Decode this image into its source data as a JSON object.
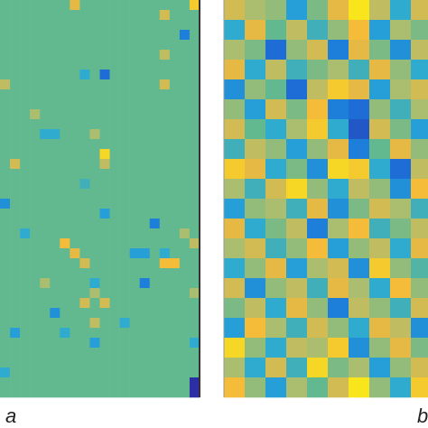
{
  "chart_data": [
    {
      "type": "heatmap",
      "title": "a",
      "clim": [
        -1,
        1
      ],
      "colormap": [
        "#2c2ea6",
        "#1c74dc",
        "#28a9d6",
        "#63b98f",
        "#b3bd6c",
        "#f3b83b",
        "#f9e51b"
      ],
      "values": [
        [
          0,
          0,
          0,
          0,
          0,
          0,
          0,
          0.6,
          0,
          0,
          0,
          0,
          0,
          0,
          0,
          0,
          0,
          0,
          0,
          0.8
        ],
        [
          0,
          0,
          0,
          0,
          0,
          0,
          0,
          0,
          0,
          0,
          0,
          0,
          0,
          0,
          0,
          0,
          0.5,
          0,
          0,
          0
        ],
        [
          0,
          0,
          0,
          0,
          0,
          0,
          0,
          0,
          0,
          0,
          0,
          0,
          0,
          0,
          0,
          0,
          0,
          0,
          0,
          0
        ],
        [
          0,
          0,
          0,
          0,
          0,
          0,
          0,
          0,
          0,
          0,
          0,
          0,
          0,
          0,
          0,
          0,
          0,
          0,
          -0.6,
          0
        ],
        [
          0,
          0,
          0,
          0,
          0,
          0,
          0,
          0,
          0,
          0,
          0,
          0,
          0,
          0,
          0,
          0,
          0,
          0,
          0,
          0
        ],
        [
          0,
          0,
          0,
          0,
          0,
          0,
          0,
          0,
          0,
          0,
          0,
          0,
          0,
          0,
          0,
          0,
          0.4,
          0,
          0,
          0
        ],
        [
          0,
          0,
          0,
          0,
          0,
          0,
          0,
          0,
          0,
          0,
          0,
          0,
          0,
          0,
          0,
          0,
          0,
          0,
          0,
          0
        ],
        [
          0,
          0,
          0,
          0,
          0,
          0,
          0,
          0,
          -0.3,
          0,
          -0.7,
          0,
          0,
          0,
          0,
          0,
          0,
          0,
          0,
          0
        ],
        [
          0.4,
          0,
          0,
          0,
          0,
          0,
          0,
          0,
          0,
          0,
          0,
          0,
          0,
          0,
          0,
          0,
          0.5,
          0,
          0,
          0
        ],
        [
          0,
          0,
          0,
          0,
          0,
          0,
          0,
          0,
          0,
          0,
          0,
          0,
          0,
          0,
          0,
          0,
          0,
          0,
          0,
          0
        ],
        [
          0,
          0,
          0,
          0,
          0,
          0,
          0,
          0,
          0,
          0,
          0,
          0,
          0,
          0,
          0,
          0,
          0,
          0,
          0,
          0
        ],
        [
          0,
          0,
          0,
          0.3,
          0,
          0,
          0,
          0,
          0,
          0,
          0,
          0,
          0,
          0,
          0,
          0,
          0,
          0,
          0,
          0
        ],
        [
          0,
          0,
          0,
          0,
          0,
          0,
          0,
          0,
          0,
          0,
          0,
          0,
          0,
          0,
          0,
          0,
          0,
          0,
          0,
          0
        ],
        [
          0,
          0,
          0,
          0,
          -0.3,
          -0.3,
          0,
          0,
          0,
          0.3,
          0,
          0,
          0,
          0,
          0,
          0,
          0,
          0,
          0,
          0
        ],
        [
          0,
          0,
          0,
          0,
          0,
          0,
          0,
          0,
          0,
          0,
          0,
          0,
          0,
          0,
          0,
          0,
          0,
          0,
          0,
          0
        ],
        [
          0,
          0,
          0,
          0,
          0,
          0,
          0,
          0,
          0,
          0,
          0.9,
          0,
          0,
          0,
          0,
          0,
          0,
          0,
          0,
          0
        ],
        [
          0,
          0.5,
          0,
          0,
          0,
          0,
          0,
          0,
          0,
          0,
          0.4,
          0,
          0,
          0,
          0,
          0,
          0,
          0,
          0,
          0
        ],
        [
          0,
          0,
          0,
          0,
          0,
          0,
          0,
          0,
          0,
          0,
          0,
          0,
          0,
          0,
          0,
          0,
          0,
          0,
          0,
          0
        ],
        [
          0,
          0,
          0,
          0,
          0,
          0,
          0,
          0,
          -0.2,
          0,
          0,
          0,
          0,
          0,
          0,
          0,
          0,
          0,
          0,
          0
        ],
        [
          0,
          0,
          0,
          0,
          0,
          0,
          0,
          0,
          0,
          0,
          0,
          0,
          0,
          0,
          0,
          0,
          0,
          0,
          0,
          0
        ],
        [
          -0.5,
          0,
          0,
          0,
          0,
          0,
          0,
          0,
          0,
          0,
          0,
          0,
          0,
          0,
          0,
          0,
          0,
          0,
          0,
          0
        ],
        [
          0,
          0,
          0,
          0,
          0,
          0,
          0,
          0,
          0,
          0,
          -0.4,
          0,
          0,
          0,
          0,
          0,
          0,
          0,
          0,
          0
        ],
        [
          0,
          0,
          0,
          0,
          0,
          0,
          0,
          0,
          0,
          0,
          0,
          0,
          0,
          0,
          0,
          -0.6,
          0,
          0,
          0,
          0
        ],
        [
          0,
          0,
          -0.3,
          0,
          0,
          0,
          0,
          0,
          0,
          0,
          0,
          0,
          0,
          0,
          0,
          0,
          0,
          0,
          0.3,
          0
        ],
        [
          0,
          0,
          0,
          0,
          0,
          0,
          0.7,
          0,
          0,
          0,
          0,
          0,
          0,
          0,
          0,
          0,
          0,
          0,
          0,
          0.4
        ],
        [
          0,
          0,
          0,
          0,
          0,
          0,
          0,
          0.6,
          0,
          0,
          0,
          0,
          0,
          -0.4,
          -0.4,
          0,
          -0.3,
          0,
          0,
          0
        ],
        [
          0,
          0,
          0,
          0,
          0,
          0,
          0,
          0,
          0.5,
          0,
          0,
          0,
          0,
          0,
          0,
          0,
          0.7,
          0.7,
          0,
          0
        ],
        [
          0,
          0,
          0,
          0,
          0,
          0,
          0,
          0,
          0,
          0,
          0,
          0,
          0,
          0,
          0,
          0,
          0,
          0,
          0,
          0
        ],
        [
          0,
          0,
          0,
          0,
          0.3,
          0,
          0,
          0,
          0,
          -0.3,
          0,
          0,
          0,
          0,
          -0.6,
          0,
          0,
          0,
          0,
          0
        ],
        [
          0,
          0,
          0,
          0,
          0,
          0,
          0,
          0,
          0,
          0.3,
          0,
          0,
          0,
          0,
          0,
          0,
          0,
          0,
          0,
          0.3
        ],
        [
          0,
          0,
          0,
          0,
          0,
          0,
          0,
          0,
          0.5,
          0,
          0.5,
          0,
          0,
          0,
          0,
          0,
          0,
          0,
          0,
          0
        ],
        [
          0,
          0,
          0,
          0,
          0,
          -0.5,
          0,
          0,
          0,
          0,
          0,
          0,
          0,
          0,
          0,
          0,
          0,
          0,
          0,
          0
        ],
        [
          0,
          0,
          0,
          0,
          0,
          0,
          0,
          0,
          0,
          0.4,
          0,
          0,
          -0.3,
          0,
          0,
          0,
          0,
          0,
          0,
          0
        ],
        [
          0,
          -0.4,
          0,
          0,
          0,
          0,
          -0.3,
          0,
          0,
          0,
          0,
          0,
          0,
          0,
          0,
          0,
          0,
          0,
          0,
          0
        ],
        [
          0,
          0,
          0,
          0,
          0,
          0,
          0,
          0,
          0,
          -0.4,
          0,
          0,
          0,
          0,
          0,
          0,
          0,
          0,
          0,
          -0.3
        ],
        [
          0,
          0,
          0,
          0,
          0,
          0,
          0,
          0,
          0,
          0,
          0,
          0,
          0,
          0,
          0,
          0,
          0,
          0,
          0,
          0
        ],
        [
          0,
          0,
          0,
          0,
          0,
          0,
          0,
          0,
          0,
          0,
          0,
          0,
          0,
          0,
          0,
          0,
          0,
          0,
          0,
          0
        ],
        [
          -0.3,
          0,
          0,
          0,
          0,
          0,
          0,
          0,
          0,
          0,
          0,
          0,
          0,
          0,
          0,
          0,
          0,
          0,
          0,
          0
        ],
        [
          0,
          0,
          0,
          0,
          0,
          0,
          0,
          0,
          0,
          0,
          0,
          0,
          0,
          0,
          0,
          0,
          0,
          0,
          0,
          -1
        ],
        [
          0,
          0,
          0,
          0,
          0,
          0,
          0,
          0,
          0,
          0,
          0,
          0,
          0,
          0,
          0,
          0,
          0,
          0,
          0,
          -1
        ]
      ]
    },
    {
      "type": "heatmap",
      "title": "b",
      "clim": [
        -1,
        1
      ],
      "colormap": [
        "#2c2ea6",
        "#1c74dc",
        "#28a9d6",
        "#63b98f",
        "#b3bd6c",
        "#f3b83b",
        "#f9e51b"
      ],
      "values": [
        [
          0.5,
          0.3,
          0.2,
          -0.4,
          0.1,
          0.6,
          1.0,
          0.4,
          -0.3,
          0.5
        ],
        [
          -0.3,
          0.6,
          0.0,
          0.4,
          -0.2,
          0.2,
          0.7,
          -0.4,
          0.3,
          0.1
        ],
        [
          0.3,
          0.1,
          -0.7,
          0.2,
          0.5,
          -0.6,
          0.6,
          0.1,
          -0.5,
          0.4
        ],
        [
          0.6,
          -0.3,
          0.4,
          -0.2,
          0.1,
          0.3,
          -0.2,
          0.6,
          0.2,
          -0.3
        ],
        [
          -0.5,
          0.2,
          0.0,
          -0.7,
          0.4,
          0.8,
          0.6,
          -0.4,
          0.3,
          0.5
        ],
        [
          0.2,
          -0.4,
          0.5,
          0.1,
          0.7,
          -0.6,
          -0.7,
          0.2,
          -0.2,
          0.3
        ],
        [
          0.5,
          0.0,
          -0.3,
          0.3,
          0.8,
          -0.3,
          -0.8,
          0.5,
          0.1,
          -0.4
        ],
        [
          -0.2,
          0.4,
          0.2,
          -0.4,
          0.2,
          0.6,
          -0.6,
          0.0,
          0.6,
          0.2
        ],
        [
          0.8,
          0.6,
          -0.3,
          0.1,
          -0.5,
          0.9,
          0.8,
          -0.3,
          -0.7,
          0.4
        ],
        [
          0.3,
          -0.2,
          0.5,
          0.9,
          0.2,
          -0.3,
          0.4,
          0.2,
          -0.5,
          0.7
        ],
        [
          -0.4,
          0.2,
          0.3,
          -0.2,
          0.6,
          -0.5,
          0.1,
          0.5,
          0.3,
          -0.2
        ],
        [
          0.6,
          -0.3,
          0.1,
          0.4,
          -0.6,
          0.3,
          0.7,
          -0.2,
          0.1,
          0.4
        ],
        [
          0.3,
          0.5,
          -0.2,
          0.2,
          0.7,
          -0.4,
          0.2,
          0.4,
          -0.3,
          0.6
        ],
        [
          -0.3,
          0.2,
          0.6,
          -0.4,
          0.3,
          0.5,
          -0.5,
          0.8,
          0.2,
          -0.1
        ],
        [
          0.5,
          -0.5,
          0.2,
          0.4,
          -0.2,
          0.6,
          0.3,
          -0.3,
          0.7,
          0.2
        ],
        [
          0.1,
          0.4,
          -0.3,
          0.6,
          0.2,
          -0.6,
          0.4,
          0.2,
          -0.2,
          0.5
        ],
        [
          -0.4,
          0.7,
          0.3,
          -0.2,
          0.5,
          0.2,
          -0.3,
          0.6,
          0.4,
          -0.5
        ],
        [
          0.9,
          0.2,
          -0.3,
          0.4,
          0.3,
          0.8,
          -0.5,
          0.2,
          0.6,
          0.1
        ],
        [
          0.3,
          -0.3,
          0.5,
          -0.2,
          0.9,
          0.1,
          0.3,
          -0.4,
          0.2,
          0.5
        ],
        [
          0.7,
          0.2,
          -0.4,
          0.3,
          0.0,
          0.5,
          1.0,
          0.2,
          -0.3,
          0.8
        ]
      ]
    }
  ]
}
